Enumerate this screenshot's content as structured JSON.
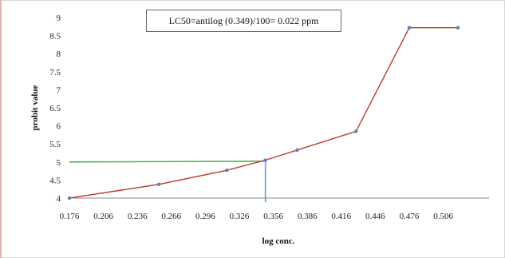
{
  "chart_data": {
    "type": "line",
    "title": "",
    "xlabel": "log conc.",
    "ylabel": "probit value",
    "xlim": [
      0.176,
      0.521
    ],
    "ylim": [
      4,
      9
    ],
    "x_ticks": [
      "0.176",
      "0.206",
      "0.236",
      "0.266",
      "0.296",
      "0.326",
      "0.356",
      "0.386",
      "0.416",
      "0.446",
      "0.476",
      "0.506"
    ],
    "y_ticks": [
      "4",
      "4.5",
      "5",
      "5.5",
      "6",
      "6.5",
      "7",
      "7.5",
      "8",
      "8.5",
      "9"
    ],
    "grid": false,
    "legend": "none",
    "series": [
      {
        "x": [
          0.176,
          0.255,
          0.315,
          0.349,
          0.377,
          0.429,
          0.476,
          0.519
        ],
        "y": [
          4.0,
          4.38,
          4.77,
          5.05,
          5.33,
          5.85,
          8.72,
          8.72
        ],
        "color": "#c0392b",
        "marker_color": "#5b7fc0"
      }
    ],
    "reference_lines": {
      "horizontal": {
        "y": 5,
        "x_end": 0.349,
        "color": "#4caf50"
      },
      "vertical": {
        "x": 0.349,
        "y_end": 5,
        "color": "#4aa3df"
      }
    },
    "annotation": "LC50=antilog (0.349)/100= 0.022 ppm"
  }
}
